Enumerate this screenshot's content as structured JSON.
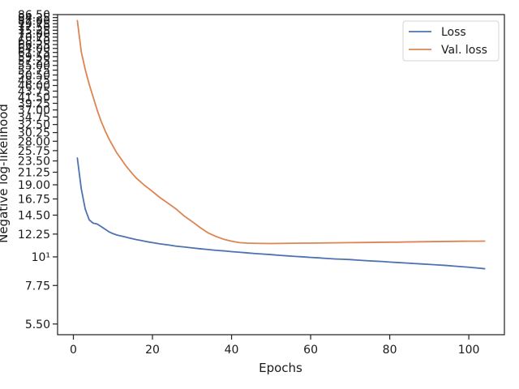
{
  "chart_data": {
    "type": "line",
    "xlabel": "Epochs",
    "ylabel": "Negative log-likelihood",
    "yscale": "log",
    "xlim": [
      -4,
      109
    ],
    "ylim": [
      5.0,
      86.5
    ],
    "xticks": [
      0,
      20,
      40,
      60,
      80,
      100
    ],
    "yticks": [
      {
        "value": 5.5,
        "label": "5.50"
      },
      {
        "value": 7.75,
        "label": "7.75"
      },
      {
        "value": 10,
        "label": "10¹"
      },
      {
        "value": 12.25,
        "label": "12.25"
      },
      {
        "value": 14.5,
        "label": "14.50"
      },
      {
        "value": 16.75,
        "label": "16.75"
      },
      {
        "value": 19.0,
        "label": "19.00"
      },
      {
        "value": 21.25,
        "label": "21.25"
      },
      {
        "value": 23.5,
        "label": "23.50"
      },
      {
        "value": 25.75,
        "label": "25.75"
      },
      {
        "value": 28.0,
        "label": "28.00"
      },
      {
        "value": 30.25,
        "label": "30.25"
      },
      {
        "value": 32.5,
        "label": "32.50"
      },
      {
        "value": 34.75,
        "label": "34.75"
      },
      {
        "value": 37.0,
        "label": "37.00"
      },
      {
        "value": 39.25,
        "label": "39.25"
      },
      {
        "value": 41.5,
        "label": "41.50"
      },
      {
        "value": 43.75,
        "label": "43.75"
      },
      {
        "value": 46.0,
        "label": "46.00"
      },
      {
        "value": 48.25,
        "label": "48.25"
      },
      {
        "value": 50.5,
        "label": "50.50"
      },
      {
        "value": 52.75,
        "label": "52.75"
      },
      {
        "value": 55.0,
        "label": "55.00"
      },
      {
        "value": 57.25,
        "label": "57.25"
      },
      {
        "value": 59.5,
        "label": "59.50"
      },
      {
        "value": 61.75,
        "label": "61.75"
      },
      {
        "value": 64.0,
        "label": "64.00"
      },
      {
        "value": 66.25,
        "label": "66.25"
      },
      {
        "value": 68.5,
        "label": "68.50"
      },
      {
        "value": 70.75,
        "label": "70.75"
      },
      {
        "value": 73.0,
        "label": "73.00"
      },
      {
        "value": 75.25,
        "label": "75.25"
      },
      {
        "value": 77.5,
        "label": "77.50"
      },
      {
        "value": 79.75,
        "label": "79.75"
      },
      {
        "value": 82.0,
        "label": "82.00"
      },
      {
        "value": 84.25,
        "label": "84.25"
      },
      {
        "value": 86.5,
        "label": "86.50"
      }
    ],
    "legend": {
      "position": "top-right"
    },
    "grid": false,
    "series": [
      {
        "name": "Loss",
        "color": "#4c72b0",
        "points": [
          [
            1,
            24.1
          ],
          [
            2,
            18.3
          ],
          [
            3,
            15.3
          ],
          [
            4,
            13.9
          ],
          [
            5,
            13.5
          ],
          [
            6,
            13.4
          ],
          [
            7,
            13.1
          ],
          [
            8,
            12.8
          ],
          [
            9,
            12.5
          ],
          [
            10,
            12.3
          ],
          [
            11,
            12.15
          ],
          [
            12,
            12.05
          ],
          [
            13,
            11.95
          ],
          [
            14,
            11.85
          ],
          [
            15,
            11.75
          ],
          [
            16,
            11.65
          ],
          [
            17,
            11.58
          ],
          [
            18,
            11.5
          ],
          [
            19,
            11.42
          ],
          [
            20,
            11.35
          ],
          [
            22,
            11.22
          ],
          [
            24,
            11.12
          ],
          [
            26,
            11.0
          ],
          [
            28,
            10.92
          ],
          [
            30,
            10.83
          ],
          [
            32,
            10.75
          ],
          [
            34,
            10.68
          ],
          [
            36,
            10.6
          ],
          [
            38,
            10.55
          ],
          [
            40,
            10.48
          ],
          [
            42,
            10.42
          ],
          [
            44,
            10.36
          ],
          [
            46,
            10.3
          ],
          [
            48,
            10.25
          ],
          [
            50,
            10.2
          ],
          [
            52,
            10.14
          ],
          [
            54,
            10.09
          ],
          [
            56,
            10.04
          ],
          [
            58,
            10.0
          ],
          [
            60,
            9.95
          ],
          [
            62,
            9.91
          ],
          [
            64,
            9.86
          ],
          [
            66,
            9.82
          ],
          [
            68,
            9.79
          ],
          [
            70,
            9.76
          ],
          [
            72,
            9.71
          ],
          [
            74,
            9.67
          ],
          [
            76,
            9.63
          ],
          [
            78,
            9.6
          ],
          [
            80,
            9.55
          ],
          [
            82,
            9.51
          ],
          [
            84,
            9.47
          ],
          [
            86,
            9.43
          ],
          [
            88,
            9.39
          ],
          [
            90,
            9.35
          ],
          [
            92,
            9.31
          ],
          [
            94,
            9.27
          ],
          [
            96,
            9.22
          ],
          [
            98,
            9.17
          ],
          [
            100,
            9.12
          ],
          [
            102,
            9.06
          ],
          [
            104,
            9.0
          ]
        ]
      },
      {
        "name": "Val. loss",
        "color": "#dd8452",
        "points": [
          [
            1,
            82.0
          ],
          [
            2,
            62.0
          ],
          [
            3,
            53.0
          ],
          [
            4,
            46.5
          ],
          [
            5,
            41.5
          ],
          [
            6,
            37.0
          ],
          [
            7,
            33.5
          ],
          [
            8,
            30.8
          ],
          [
            9,
            28.6
          ],
          [
            10,
            26.8
          ],
          [
            11,
            25.2
          ],
          [
            12,
            24.0
          ],
          [
            13,
            22.8
          ],
          [
            14,
            21.8
          ],
          [
            15,
            20.9
          ],
          [
            16,
            20.1
          ],
          [
            17,
            19.5
          ],
          [
            18,
            18.9
          ],
          [
            19,
            18.4
          ],
          [
            20,
            17.9
          ],
          [
            22,
            16.9
          ],
          [
            24,
            16.1
          ],
          [
            26,
            15.3
          ],
          [
            28,
            14.4
          ],
          [
            30,
            13.7
          ],
          [
            32,
            13.0
          ],
          [
            34,
            12.4
          ],
          [
            36,
            12.0
          ],
          [
            38,
            11.7
          ],
          [
            40,
            11.5
          ],
          [
            42,
            11.35
          ],
          [
            44,
            11.3
          ],
          [
            46,
            11.28
          ],
          [
            48,
            11.27
          ],
          [
            50,
            11.26
          ],
          [
            52,
            11.27
          ],
          [
            54,
            11.28
          ],
          [
            56,
            11.29
          ],
          [
            58,
            11.3
          ],
          [
            60,
            11.3
          ],
          [
            62,
            11.31
          ],
          [
            64,
            11.32
          ],
          [
            66,
            11.33
          ],
          [
            68,
            11.34
          ],
          [
            70,
            11.35
          ],
          [
            72,
            11.36
          ],
          [
            74,
            11.37
          ],
          [
            76,
            11.38
          ],
          [
            78,
            11.39
          ],
          [
            80,
            11.4
          ],
          [
            82,
            11.4
          ],
          [
            84,
            11.42
          ],
          [
            86,
            11.43
          ],
          [
            88,
            11.44
          ],
          [
            90,
            11.45
          ],
          [
            92,
            11.46
          ],
          [
            94,
            11.47
          ],
          [
            96,
            11.48
          ],
          [
            98,
            11.49
          ],
          [
            100,
            11.5
          ],
          [
            102,
            11.5
          ],
          [
            104,
            11.51
          ]
        ]
      }
    ]
  }
}
